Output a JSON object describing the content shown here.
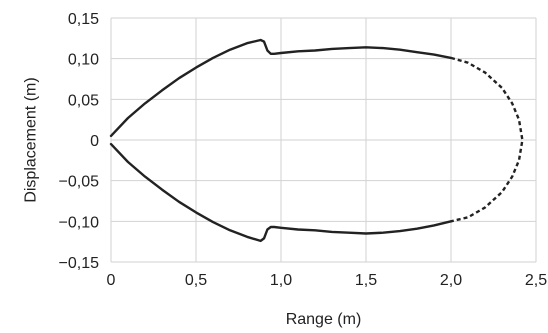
{
  "chart_data": {
    "type": "line",
    "title": "",
    "xlabel": "Range (m)",
    "ylabel": "Displacement (m)",
    "xlim": [
      0,
      2.5
    ],
    "ylim": [
      -0.15,
      0.15
    ],
    "grid": true,
    "x_ticks": [
      0,
      0.5,
      1.0,
      1.5,
      2.0,
      2.5
    ],
    "x_tick_labels": [
      "0",
      "0,5",
      "1,0",
      "1,5",
      "2,0",
      "2,5"
    ],
    "y_ticks": [
      0.15,
      0.1,
      0.05,
      0,
      -0.05,
      -0.1,
      -0.15
    ],
    "y_tick_labels": [
      "0,15",
      "0,10",
      "0,05",
      "0",
      "−0,05",
      "−0,10",
      "−0,15"
    ],
    "series": [
      {
        "style": "solid",
        "x": [
          0.0,
          0.1,
          0.2,
          0.3,
          0.4,
          0.5,
          0.6,
          0.7,
          0.8,
          0.88,
          0.9,
          0.92,
          0.94,
          0.96,
          1.0,
          1.1,
          1.2,
          1.3,
          1.4,
          1.5,
          1.6,
          1.7,
          1.8,
          1.9,
          2.0
        ],
        "y": [
          0.005,
          0.027,
          0.045,
          0.061,
          0.076,
          0.089,
          0.101,
          0.111,
          0.119,
          0.123,
          0.121,
          0.11,
          0.106,
          0.106,
          0.107,
          0.109,
          0.11,
          0.112,
          0.113,
          0.114,
          0.113,
          0.111,
          0.108,
          0.105,
          0.101
        ]
      },
      {
        "style": "solid",
        "x": [
          0.0,
          0.1,
          0.2,
          0.3,
          0.4,
          0.5,
          0.6,
          0.7,
          0.8,
          0.88,
          0.9,
          0.92,
          0.94,
          0.96,
          1.0,
          1.1,
          1.2,
          1.3,
          1.4,
          1.5,
          1.6,
          1.7,
          1.8,
          1.9,
          2.0
        ],
        "y": [
          -0.005,
          -0.027,
          -0.045,
          -0.061,
          -0.076,
          -0.089,
          -0.101,
          -0.111,
          -0.119,
          -0.124,
          -0.121,
          -0.11,
          -0.107,
          -0.107,
          -0.108,
          -0.11,
          -0.111,
          -0.113,
          -0.114,
          -0.115,
          -0.114,
          -0.112,
          -0.109,
          -0.105,
          -0.1
        ]
      },
      {
        "style": "dashed",
        "x": [
          2.0,
          2.1,
          2.2,
          2.3,
          2.36,
          2.4,
          2.42,
          2.4,
          2.36,
          2.3,
          2.2,
          2.1,
          2.0
        ],
        "y": [
          0.101,
          0.095,
          0.083,
          0.064,
          0.045,
          0.025,
          0.0,
          -0.025,
          -0.045,
          -0.064,
          -0.083,
          -0.095,
          -0.1
        ]
      }
    ]
  }
}
